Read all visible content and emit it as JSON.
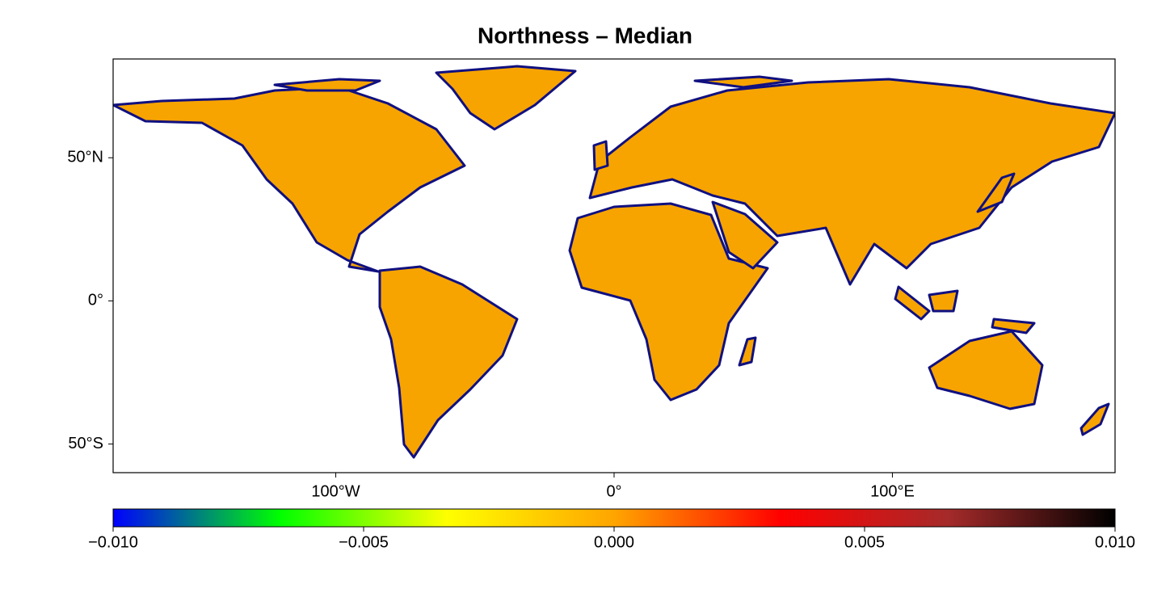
{
  "chart_data": {
    "type": "map",
    "title": "Northness – Median",
    "xlim": [
      -180,
      180
    ],
    "ylim": [
      -60,
      84.5
    ],
    "xticks": [
      {
        "value": -100,
        "label": "100°W"
      },
      {
        "value": 0,
        "label": "0°"
      },
      {
        "value": 100,
        "label": "100°E"
      }
    ],
    "yticks": [
      {
        "value": 50,
        "label": "50°N"
      },
      {
        "value": 0,
        "label": "0°"
      },
      {
        "value": -50,
        "label": "50°S"
      }
    ],
    "colorbar": {
      "lim": [
        -0.01,
        0.01
      ],
      "ticks": [
        {
          "value": -0.01,
          "label": "−0.010"
        },
        {
          "value": -0.005,
          "label": "−0.005"
        },
        {
          "value": 0,
          "label": "0.000"
        },
        {
          "value": 0.005,
          "label": "0.005"
        },
        {
          "value": 0.01,
          "label": "0.010"
        }
      ],
      "colors": [
        "#0000ff",
        "#00ff00",
        "#ffff00",
        "#ffa500",
        "#ff0000",
        "#a52a2a",
        "#000000"
      ]
    }
  }
}
